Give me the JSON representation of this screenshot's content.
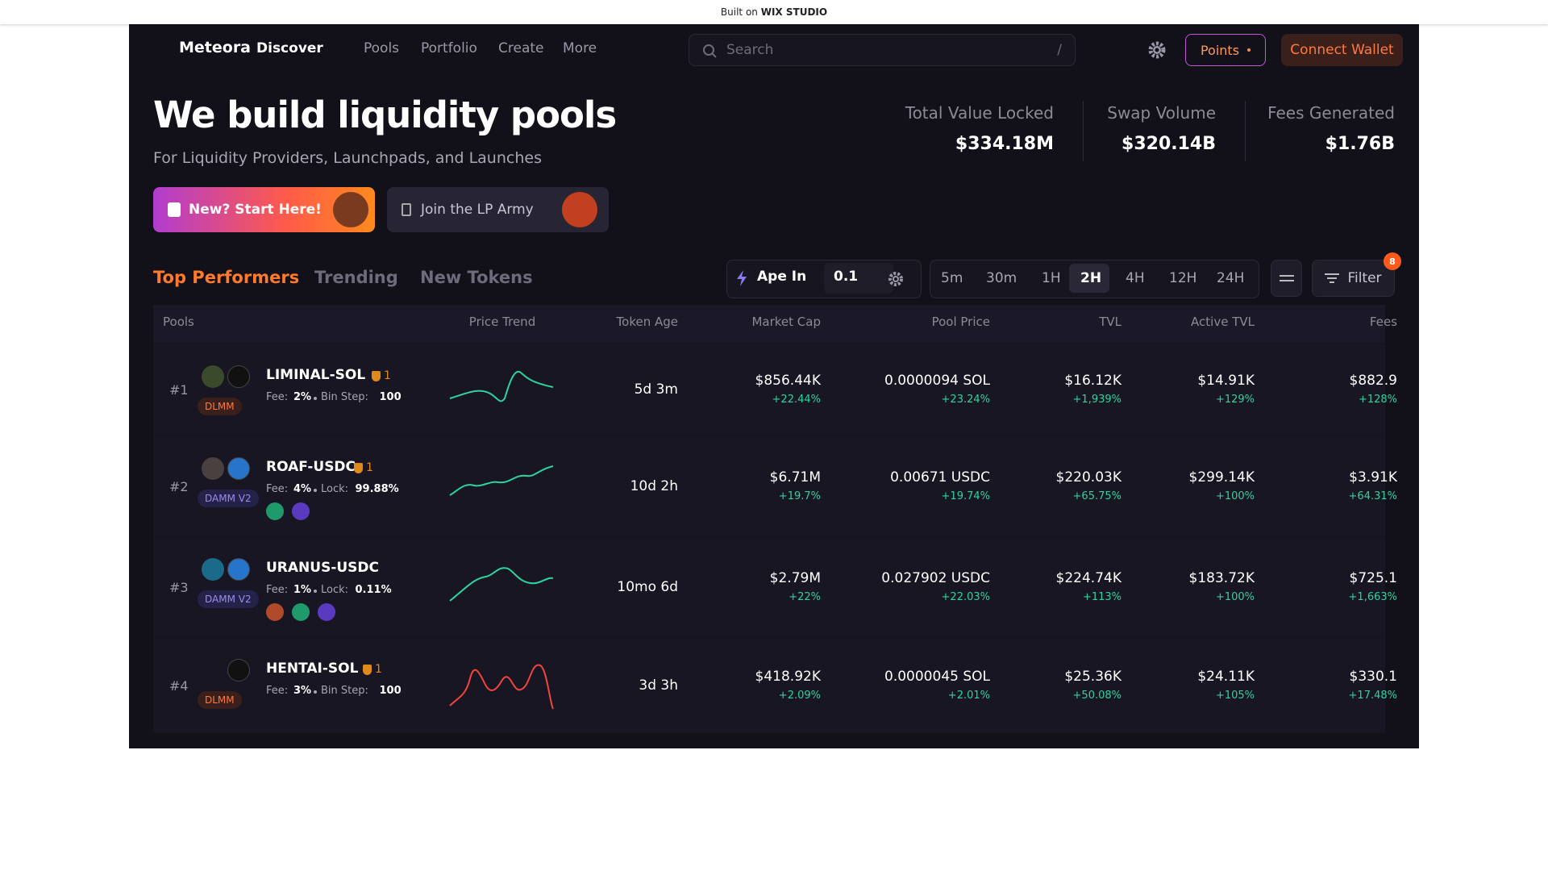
{
  "banner": {
    "prefix": "Built on",
    "brand": "WIX STUDIO"
  },
  "nav": {
    "logo": "Meteora",
    "links": [
      "Discover",
      "Pools",
      "Portfolio",
      "Create",
      "More"
    ],
    "search": "Search",
    "shortcut": "/",
    "points": "Points",
    "connect": "Connect Wallet"
  },
  "hero": {
    "title": "We build liquidity pools",
    "subtitle": "For Liquidity Providers, Launchpads, and Launches",
    "buttons": [
      "New? Start Here!",
      "Join the LP Army"
    ]
  },
  "stats": [
    {
      "label": "Total Value Locked",
      "value": "$334.18M"
    },
    {
      "label": "Swap Volume",
      "value": "$320.14B"
    },
    {
      "label": "Fees Generated",
      "value": "$1.76B"
    }
  ],
  "tabs": [
    "Top Performers",
    "Trending",
    "New Tokens"
  ],
  "toolbar": {
    "ape": "Ape In",
    "amount": "0.1",
    "timeframes": [
      "5m",
      "30m",
      "1H",
      "2H",
      "4H",
      "12H",
      "24H"
    ],
    "filter": "Filter",
    "filter_count": "8"
  },
  "table": {
    "columns": [
      "Pools",
      "Price Trend",
      "Token Age",
      "Market Cap",
      "Pool Price",
      "TVL",
      "Active TVL",
      "Fees"
    ],
    "rows": [
      {
        "rank": "#1",
        "name": "LIMINAL-SOL",
        "badge": "1",
        "type": "DLMM",
        "fee_label": "Fee:",
        "fee": "2%",
        "param_label": "Bin Step:",
        "param": "100",
        "age": "5d 3m",
        "market_cap": "$856.44K",
        "market_cap_change": "+22.44%",
        "price": "0.0000094 SOL",
        "price_change": "+23.24%",
        "tvl": "$16.12K",
        "tvl_change": "+1,939%",
        "active_tvl": "$14.91K",
        "active_tvl_change": "+129%",
        "fees": "$882.9",
        "fees_change": "+128%"
      },
      {
        "rank": "#2",
        "name": "ROAF-USDC",
        "badge": "1",
        "type": "DAMM V2",
        "fee_label": "Fee:",
        "fee": "4%",
        "param_label": "Lock:",
        "param": "99.88%",
        "age": "10d 2h",
        "market_cap": "$6.71M",
        "market_cap_change": "+19.7%",
        "price": "0.00671 USDC",
        "price_change": "+19.74%",
        "tvl": "$220.03K",
        "tvl_change": "+65.75%",
        "active_tvl": "$299.14K",
        "active_tvl_change": "+100%",
        "fees": "$3.91K",
        "fees_change": "+64.31%"
      },
      {
        "rank": "#3",
        "name": "URANUS-USDC",
        "type": "DAMM V2",
        "fee_label": "Fee:",
        "fee": "1%",
        "param_label": "Lock:",
        "param": "0.11%",
        "age": "10mo 6d",
        "market_cap": "$2.79M",
        "market_cap_change": "+22%",
        "price": "0.027902 USDC",
        "price_change": "+22.03%",
        "tvl": "$224.74K",
        "tvl_change": "+113%",
        "active_tvl": "$183.72K",
        "active_tvl_change": "+100%",
        "fees": "$725.1",
        "fees_change": "+1,663%"
      },
      {
        "rank": "#4",
        "name": "HENTAI-SOL",
        "badge": "1",
        "type": "DLMM",
        "fee_label": "Fee:",
        "fee": "3%",
        "param_label": "Bin Step:",
        "param": "100",
        "age": "3d 3h",
        "market_cap": "$418.92K",
        "market_cap_change": "+2.09%",
        "price": "0.0000045 SOL",
        "price_change": "+2.01%",
        "tvl": "$25.36K",
        "tvl_change": "+50.08%",
        "active_tvl": "$24.11K",
        "active_tvl_change": "+105%",
        "fees": "$330.1",
        "fees_change": "+17.48%"
      }
    ]
  }
}
